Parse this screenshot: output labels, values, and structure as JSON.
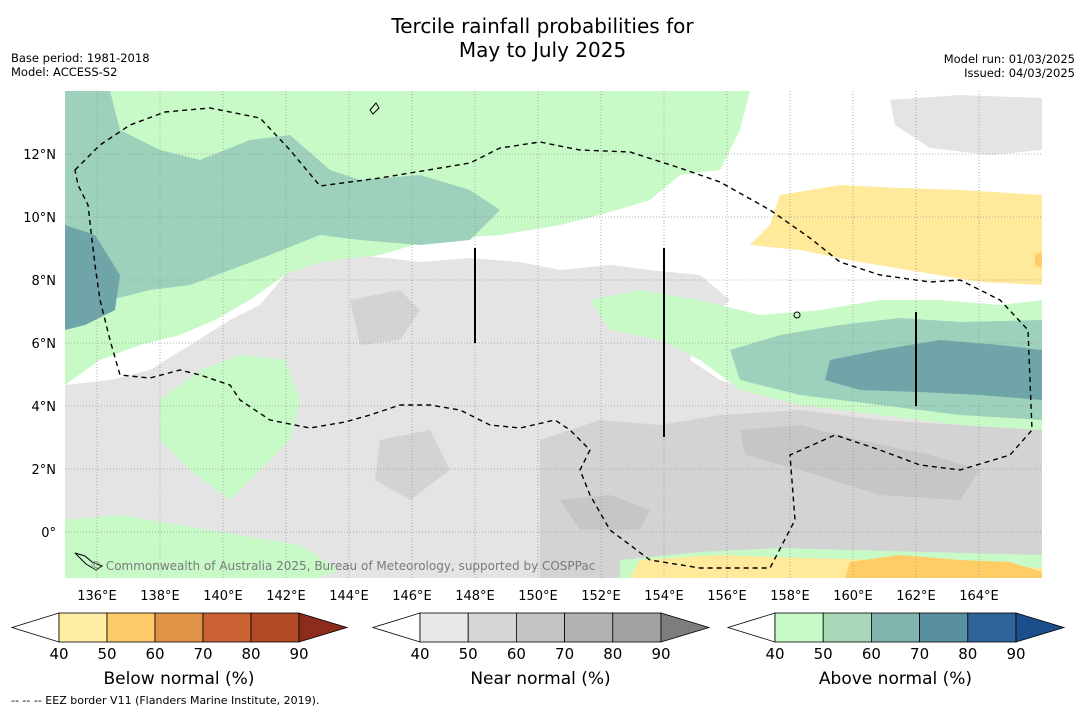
{
  "title": {
    "line1": "Tercile rainfall probabilities for",
    "line2": "May to July 2025"
  },
  "meta": {
    "base_period": "Base period: 1981-2018",
    "model": "Model: ACCESS-S2",
    "model_run": "Model run: 01/03/2025",
    "issued": "Issued: 04/03/2025"
  },
  "map": {
    "lon_ticks": [
      "136°E",
      "138°E",
      "140°E",
      "142°E",
      "144°E",
      "146°E",
      "148°E",
      "150°E",
      "152°E",
      "154°E",
      "156°E",
      "158°E",
      "160°E",
      "162°E",
      "164°E"
    ],
    "lat_ticks": [
      "12°N",
      "10°N",
      "8°N",
      "6°N",
      "4°N",
      "2°N",
      "0°"
    ],
    "copyright": "© Commonwealth of Australia 2025, Bureau of Meteorology, supported by COSPPac",
    "border_line": "EEZ border",
    "colors": {
      "background": "#ffffff",
      "near_normal_1": "#e4e4e4",
      "near_normal_2": "#d3d3d3",
      "near_normal_3": "#c6c6c6",
      "above_normal_1": "#c8fac8",
      "above_normal_2": "#9dd1bc",
      "above_normal_3": "#6fa4a8",
      "below_normal_1": "#ffe99a",
      "below_normal_2": "#ffcc66"
    }
  },
  "colorbars": [
    {
      "title": "Below normal (%)",
      "ticks": [
        "40",
        "50",
        "60",
        "70",
        "80",
        "90"
      ],
      "colors": [
        "#ffffff",
        "#feeda2",
        "#fdca6a",
        "#e09345",
        "#cc6233",
        "#b04a27",
        "#8b2c1c"
      ]
    },
    {
      "title": "Near normal (%)",
      "ticks": [
        "40",
        "50",
        "60",
        "70",
        "80",
        "90"
      ],
      "colors": [
        "#ffffff",
        "#e8e8e8",
        "#d6d6d6",
        "#c4c4c4",
        "#b2b2b2",
        "#a2a2a2",
        "#7d7d7d"
      ]
    },
    {
      "title": "Above normal (%)",
      "ticks": [
        "40",
        "50",
        "60",
        "70",
        "80",
        "90"
      ],
      "colors": [
        "#ffffff",
        "#c8fac8",
        "#a6d8b8",
        "#80b4ac",
        "#5a8fa0",
        "#2f6399",
        "#1b4e8a"
      ]
    }
  ],
  "footer": "--  --  -- EEZ border V11 (Flanders Marine Institute, 2019)."
}
